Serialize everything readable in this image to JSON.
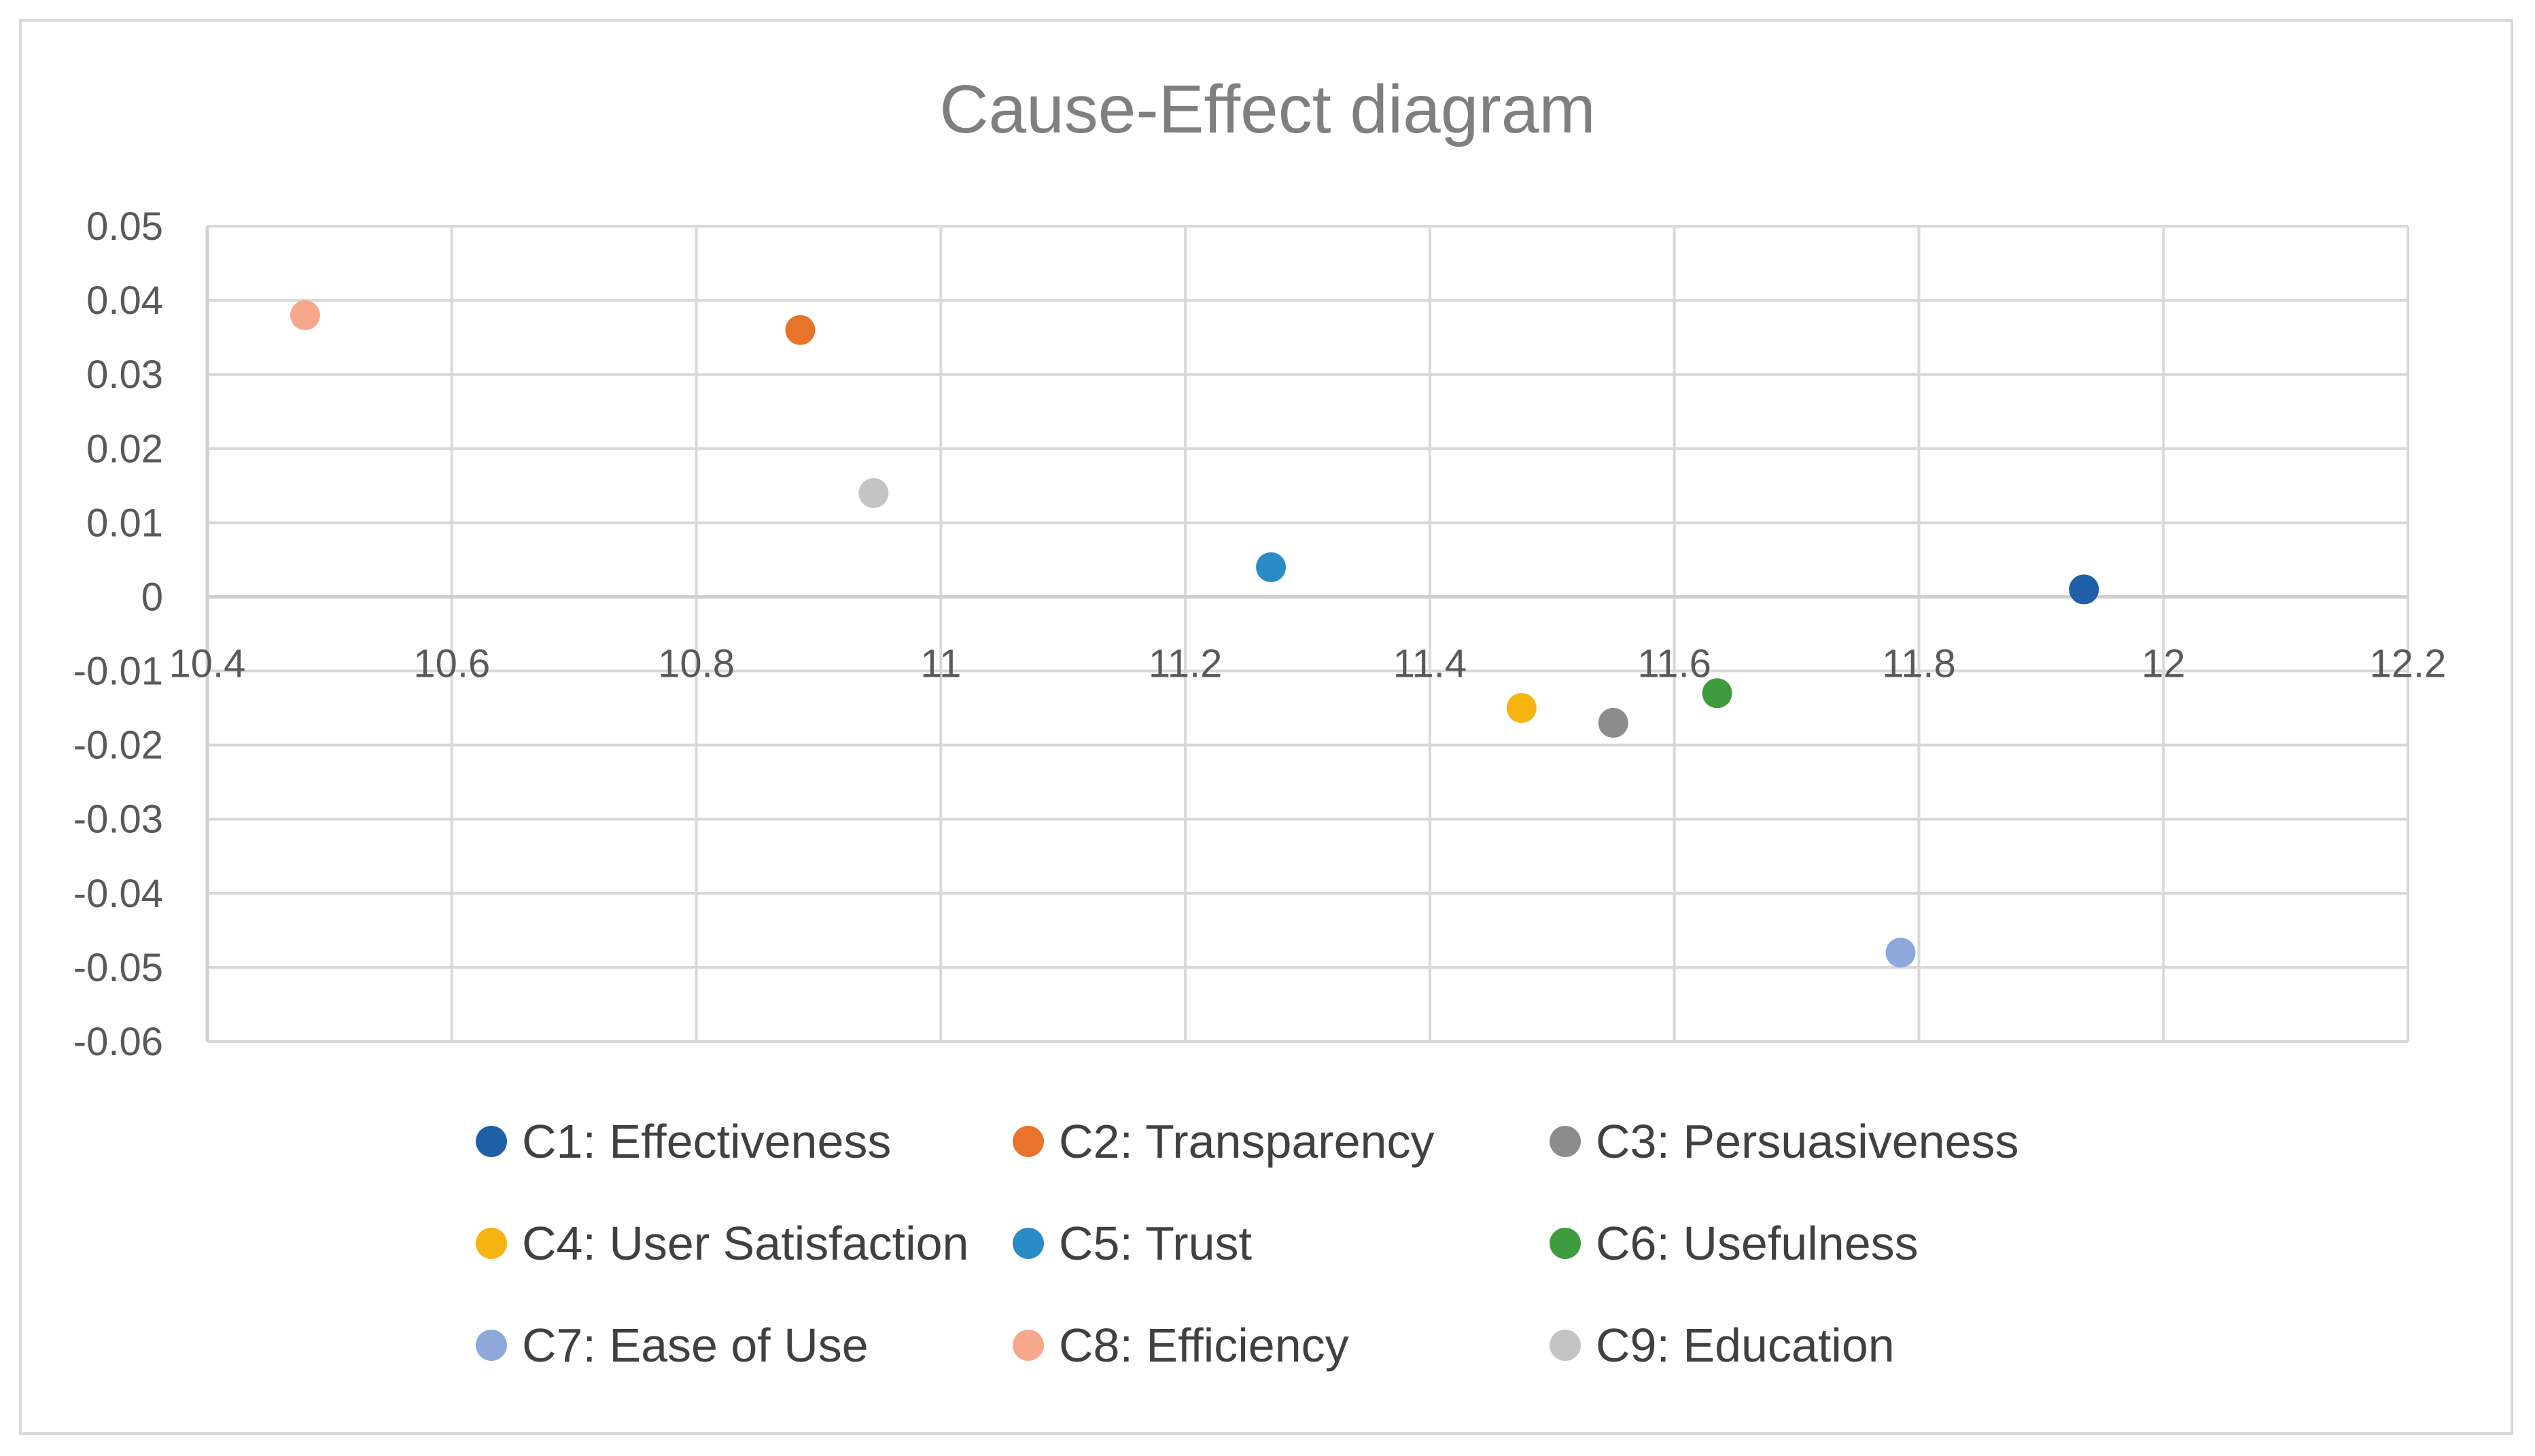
{
  "chart_data": {
    "type": "scatter",
    "title": "Cause-Effect diagram",
    "xlabel": "",
    "ylabel": "",
    "xlim": [
      10.4,
      12.2
    ],
    "ylim": [
      -0.06,
      0.05
    ],
    "x_ticks": [
      10.4,
      10.6,
      10.8,
      11,
      11.2,
      11.4,
      11.6,
      11.8,
      12,
      12.2
    ],
    "x_tick_labels": [
      "10.4",
      "10.6",
      "10.8",
      "11",
      "11.2",
      "11.4",
      "11.6",
      "11.8",
      "12",
      "12.2"
    ],
    "y_ticks": [
      0.05,
      0.04,
      0.03,
      0.02,
      0.01,
      0,
      -0.01,
      -0.02,
      -0.03,
      -0.04,
      -0.05,
      -0.06
    ],
    "y_tick_labels": [
      "0.05",
      "0.04",
      "0.03",
      "0.02",
      "0.01",
      "0",
      "-0.01",
      "-0.02",
      "-0.03",
      "-0.04",
      "-0.05",
      "-0.06"
    ],
    "grid": true,
    "legend_position": "bottom",
    "series": [
      {
        "name": "C1: Effectiveness",
        "x": 11.935,
        "y": 0.001,
        "color": "#1f5fa8"
      },
      {
        "name": "C2: Transparency",
        "x": 10.885,
        "y": 0.036,
        "color": "#e8732a"
      },
      {
        "name": "C3: Persuasiveness",
        "x": 11.55,
        "y": -0.017,
        "color": "#8c8c8c"
      },
      {
        "name": "C4: User Satisfaction",
        "x": 11.475,
        "y": -0.015,
        "color": "#f5b40f"
      },
      {
        "name": "C5: Trust",
        "x": 11.27,
        "y": 0.004,
        "color": "#2a8cc7"
      },
      {
        "name": "C6: Usefulness",
        "x": 11.635,
        "y": -0.013,
        "color": "#3f9b3f"
      },
      {
        "name": "C7: Ease of Use",
        "x": 11.785,
        "y": -0.048,
        "color": "#8fa8da"
      },
      {
        "name": "C8: Efficiency",
        "x": 10.48,
        "y": 0.038,
        "color": "#f7a88c"
      },
      {
        "name": "C9: Education",
        "x": 10.945,
        "y": 0.014,
        "color": "#c4c4c4"
      }
    ]
  }
}
